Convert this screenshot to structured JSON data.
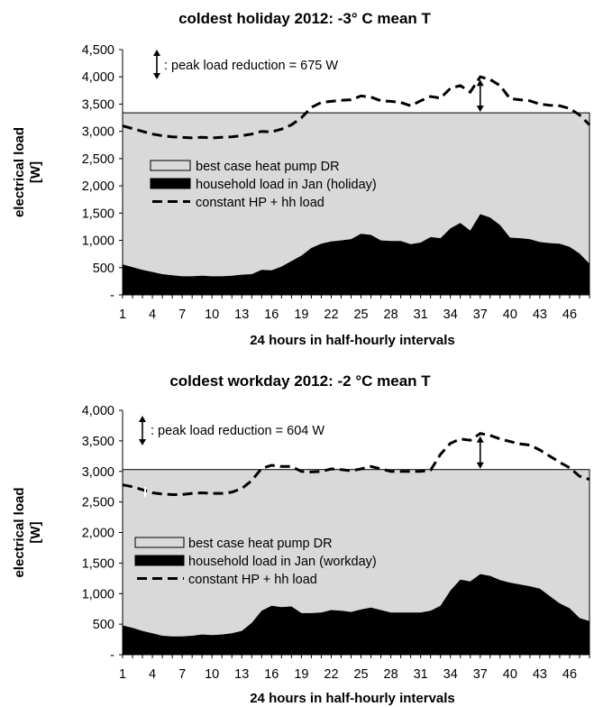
{
  "chart_data": [
    {
      "type": "area",
      "title": "coldest holiday 2012: -3° C mean T",
      "xlabel": "24 hours in half-hourly intervals",
      "ylabel": "electrical load [W]",
      "ylim": [
        0,
        4500
      ],
      "yticks": [
        "-",
        "500",
        "1,000",
        "1,500",
        "2,000",
        "2,500",
        "3,000",
        "3,500",
        "4,000",
        "4,500"
      ],
      "xticks": [
        "1",
        "4",
        "7",
        "10",
        "13",
        "16",
        "19",
        "22",
        "25",
        "28",
        "31",
        "34",
        "37",
        "40",
        "43",
        "46"
      ],
      "x": [
        1,
        2,
        3,
        4,
        5,
        6,
        7,
        8,
        9,
        10,
        11,
        12,
        13,
        14,
        15,
        16,
        17,
        18,
        19,
        20,
        21,
        22,
        23,
        24,
        25,
        26,
        27,
        28,
        29,
        30,
        31,
        32,
        33,
        34,
        35,
        36,
        37,
        38,
        39,
        40,
        41,
        42,
        43,
        44,
        45,
        46,
        47,
        48
      ],
      "annotation": ": peak load reduction = 675 W",
      "legend_position": "left",
      "series": [
        {
          "name": "best case heat pump DR",
          "kind": "area",
          "color": "#d9d9d9",
          "constant": 3340
        },
        {
          "name": "household load in Jan (holiday)",
          "kind": "area",
          "color": "#000000",
          "values": [
            560,
            510,
            460,
            420,
            380,
            360,
            340,
            340,
            350,
            340,
            340,
            350,
            370,
            380,
            460,
            450,
            520,
            620,
            720,
            860,
            940,
            980,
            1000,
            1020,
            1120,
            1100,
            1000,
            990,
            990,
            930,
            960,
            1060,
            1040,
            1220,
            1320,
            1180,
            1480,
            1420,
            1280,
            1050,
            1040,
            1020,
            970,
            950,
            940,
            880,
            760,
            570
          ]
        },
        {
          "name": "constant HP + hh load",
          "kind": "dashed",
          "color": "#000000",
          "values": [
            3100,
            3050,
            3000,
            2950,
            2920,
            2900,
            2890,
            2880,
            2890,
            2880,
            2890,
            2900,
            2920,
            2950,
            3000,
            2990,
            3040,
            3120,
            3250,
            3440,
            3530,
            3550,
            3570,
            3580,
            3650,
            3630,
            3560,
            3550,
            3530,
            3470,
            3560,
            3640,
            3610,
            3790,
            3840,
            3720,
            4000,
            3950,
            3840,
            3600,
            3580,
            3560,
            3500,
            3480,
            3470,
            3420,
            3300,
            3120
          ]
        }
      ]
    },
    {
      "type": "area",
      "title": "coldest workday 2012: -2 °C mean T",
      "xlabel": "24 hours in half-hourly intervals",
      "ylabel": "electrical load [W]",
      "ylim": [
        0,
        4000
      ],
      "yticks": [
        "-",
        "500",
        "1,000",
        "1,500",
        "2,000",
        "2,500",
        "3,000",
        "3,500",
        "4,000"
      ],
      "xticks": [
        "1",
        "4",
        "7",
        "10",
        "13",
        "16",
        "19",
        "22",
        "25",
        "28",
        "31",
        "34",
        "37",
        "40",
        "43",
        "46"
      ],
      "x": [
        1,
        2,
        3,
        4,
        5,
        6,
        7,
        8,
        9,
        10,
        11,
        12,
        13,
        14,
        15,
        16,
        17,
        18,
        19,
        20,
        21,
        22,
        23,
        24,
        25,
        26,
        27,
        28,
        29,
        30,
        31,
        32,
        33,
        34,
        35,
        36,
        37,
        38,
        39,
        40,
        41,
        42,
        43,
        44,
        45,
        46,
        47,
        48
      ],
      "annotation": ": peak load reduction = 604 W",
      "legend_position": "left",
      "series": [
        {
          "name": "best case heat pump DR",
          "kind": "area",
          "color": "#d9d9d9",
          "constant": 3030
        },
        {
          "name": "household load in Jan (workday)",
          "kind": "area",
          "color": "#000000",
          "values": [
            480,
            440,
            390,
            350,
            310,
            300,
            300,
            310,
            330,
            320,
            330,
            350,
            390,
            520,
            720,
            800,
            780,
            790,
            680,
            680,
            690,
            730,
            720,
            700,
            740,
            770,
            730,
            690,
            690,
            690,
            690,
            720,
            800,
            1050,
            1230,
            1200,
            1320,
            1290,
            1220,
            1180,
            1150,
            1120,
            1080,
            960,
            840,
            760,
            600,
            550
          ]
        },
        {
          "name": "constant HP + hh load",
          "kind": "dashed",
          "color": "#000000",
          "values": [
            2780,
            2750,
            2700,
            2650,
            2630,
            2620,
            2620,
            2640,
            2650,
            2640,
            2640,
            2660,
            2720,
            2850,
            3050,
            3100,
            3080,
            3080,
            3000,
            2990,
            3000,
            3040,
            3030,
            3010,
            3040,
            3080,
            3040,
            3000,
            3000,
            3000,
            3000,
            3020,
            3280,
            3460,
            3530,
            3510,
            3620,
            3590,
            3530,
            3490,
            3450,
            3430,
            3350,
            3250,
            3150,
            3060,
            2920,
            2870
          ]
        }
      ]
    }
  ]
}
